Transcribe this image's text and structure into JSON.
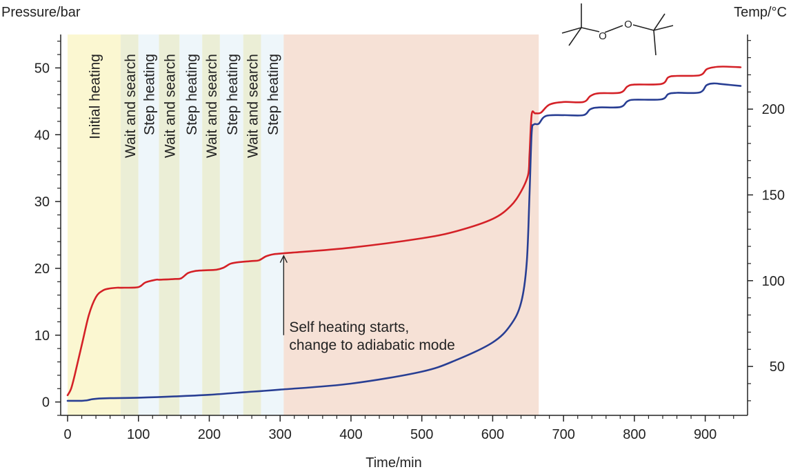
{
  "chart_data": {
    "type": "line",
    "title": "",
    "xlabel": "Time/min",
    "ylabel_left": "Pressure/bar",
    "ylabel_right": "Temp/°C",
    "xlim": [
      0,
      950
    ],
    "ylim_left": [
      -2,
      55
    ],
    "ylim_right": [
      21.5,
      243.5
    ],
    "xticks": [
      0,
      100,
      200,
      300,
      400,
      500,
      600,
      700,
      800,
      900
    ],
    "yticks_left": [
      0,
      10,
      20,
      30,
      40,
      50
    ],
    "yticks_right": [
      50,
      100,
      150,
      200
    ],
    "grid": false,
    "phases": [
      {
        "label": "Initial heating",
        "x0": 0,
        "x1": 75,
        "color": "#fbf7d1"
      },
      {
        "label": "Wait and search",
        "x0": 75,
        "x1": 100,
        "color": "#ebeed6"
      },
      {
        "label": "Step heating",
        "x0": 100,
        "x1": 129,
        "color": "#eef6fa"
      },
      {
        "label": "Wait and search",
        "x0": 129,
        "x1": 158,
        "color": "#ebeed6"
      },
      {
        "label": "Step heating",
        "x0": 158,
        "x1": 190,
        "color": "#eef6fa"
      },
      {
        "label": "Wait and search",
        "x0": 190,
        "x1": 215,
        "color": "#ebeed6"
      },
      {
        "label": "Step heating",
        "x0": 215,
        "x1": 248,
        "color": "#eef6fa"
      },
      {
        "label": "Wait and search",
        "x0": 248,
        "x1": 273,
        "color": "#ebeed6"
      },
      {
        "label": "Step heating",
        "x0": 273,
        "x1": 305,
        "color": "#eef6fa"
      },
      {
        "label": "",
        "x0": 305,
        "x1": 665,
        "color": "#f6e1d6"
      }
    ],
    "annotation": {
      "lines": [
        "Self heating starts,",
        "change to adiabatic mode"
      ],
      "x": 305,
      "y_tip": 22.2,
      "y_tail": 10
    },
    "series": [
      {
        "color": "#d42127",
        "axis": "left",
        "x": [
          0,
          5,
          10,
          20,
          30,
          40,
          50,
          60,
          70,
          80,
          100,
          110,
          125,
          130,
          150,
          160,
          170,
          180,
          190,
          210,
          220,
          230,
          240,
          260,
          270,
          280,
          290,
          300,
          310,
          400,
          500,
          550,
          600,
          625,
          640,
          650,
          652,
          655,
          660,
          668,
          680,
          700,
          728,
          738,
          750,
          780,
          790,
          800,
          838,
          848,
          860,
          892,
          902,
          912,
          925,
          950
        ],
        "values": [
          1,
          2,
          4,
          8.5,
          13,
          15.7,
          16.7,
          17,
          17.1,
          17.1,
          17.2,
          17.9,
          18.3,
          18.3,
          18.4,
          18.5,
          19.3,
          19.6,
          19.7,
          19.8,
          20.1,
          20.7,
          20.9,
          21.1,
          21.2,
          21.8,
          22.1,
          22.2,
          22.3,
          23.1,
          24.5,
          25.6,
          27.4,
          29.3,
          31.5,
          34,
          37,
          43,
          43.2,
          43.3,
          44.5,
          44.9,
          44.9,
          45.8,
          46.2,
          46.3,
          47.2,
          47.5,
          47.6,
          48.6,
          48.8,
          48.9,
          49.8,
          50.1,
          50.2,
          50.1
        ]
      },
      {
        "color": "#283e93",
        "axis": "right",
        "x": [
          0,
          10,
          20,
          28,
          35,
          45,
          60,
          100,
          150,
          200,
          250,
          300,
          400,
          500,
          550,
          600,
          625,
          640,
          648,
          652,
          655,
          658,
          665,
          675,
          700,
          728,
          738,
          750,
          780,
          790,
          800,
          838,
          848,
          860,
          892,
          902,
          912,
          925,
          950
        ],
        "values": [
          30,
          30,
          30,
          30.3,
          30.9,
          31.3,
          31.5,
          31.8,
          32.5,
          33.5,
          35,
          36.5,
          40,
          47,
          54,
          64,
          74,
          87,
          110,
          150,
          186,
          191,
          191.5,
          196,
          196.5,
          196.5,
          200,
          201,
          201.2,
          204.5,
          205.5,
          205.7,
          208.8,
          209.5,
          209.7,
          214,
          215,
          214.5,
          213.5
        ]
      }
    ]
  }
}
